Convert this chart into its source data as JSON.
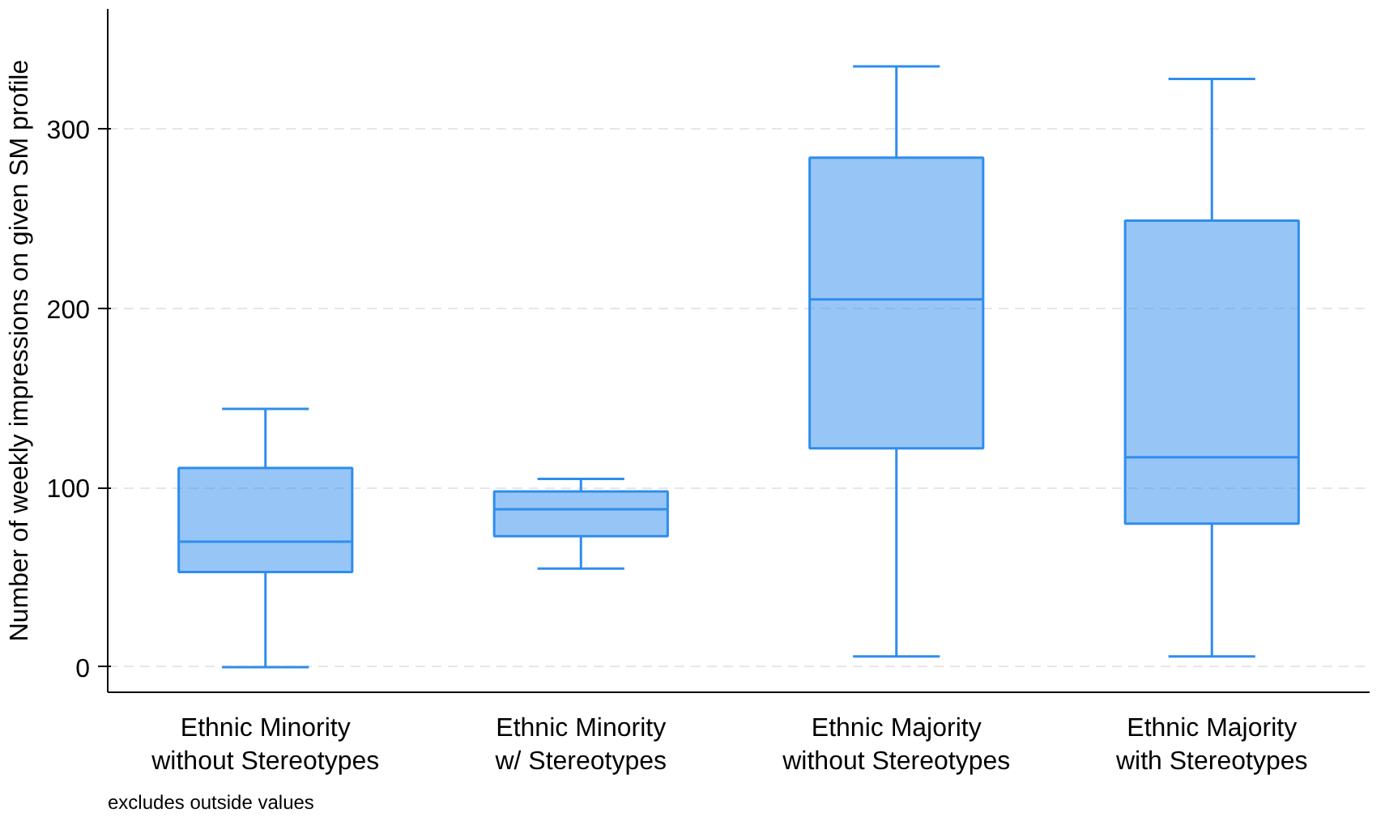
{
  "chart_data": {
    "type": "box",
    "ylabel": "Number of weekly impressions on given SM profile",
    "categories": [
      "Ethnic Minority\nwithout Stereotypes",
      "Ethnic Minority\nw/ Stereotypes",
      "Ethnic Majority\nwithout Stereotypes",
      "Ethnic Majority\nwith Stereotypes"
    ],
    "boxes": [
      {
        "low": 0,
        "q1": 53,
        "median": 70,
        "q3": 111,
        "high": 144
      },
      {
        "low": 55,
        "q1": 73,
        "median": 88,
        "q3": 98,
        "high": 105
      },
      {
        "low": 6,
        "q1": 122,
        "median": 205,
        "q3": 284,
        "high": 335
      },
      {
        "low": 6,
        "q1": 80,
        "median": 117,
        "q3": 249,
        "high": 328
      }
    ],
    "color": "#2f8ded",
    "ylim": [
      -14,
      367
    ],
    "yticks": [
      0,
      100,
      200,
      300
    ],
    "grid": "y",
    "annotations": [
      "excludes outside values"
    ]
  }
}
